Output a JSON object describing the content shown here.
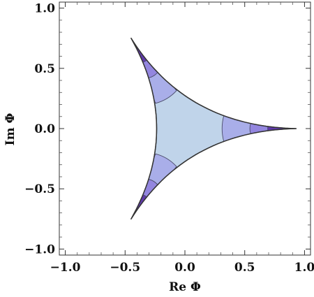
{
  "chart_data": {
    "type": "contour",
    "xlabel": "Re Φ",
    "ylabel": "Im Φ",
    "xlim": [
      -1.05,
      1.05
    ],
    "ylim": [
      -1.05,
      1.05
    ],
    "xticks": [
      {
        "value": -1.0,
        "label": "−1.0"
      },
      {
        "value": -0.5,
        "label": "−0.5"
      },
      {
        "value": 0.0,
        "label": "0.0"
      },
      {
        "value": 0.5,
        "label": "0.5"
      },
      {
        "value": 1.0,
        "label": "1.0"
      }
    ],
    "yticks": [
      {
        "value": 1.0,
        "label": "1.0"
      },
      {
        "value": 0.5,
        "label": "0.5"
      },
      {
        "value": 0.0,
        "label": "0.0"
      },
      {
        "value": -0.5,
        "label": "−0.5"
      },
      {
        "value": -1.0,
        "label": "−1.0"
      }
    ],
    "grid": false,
    "region": {
      "shape": "three-cusped curved triangle (deltoid)",
      "tips": [
        [
          0.93,
          0.0
        ],
        [
          -0.45,
          0.75
        ],
        [
          -0.45,
          -0.75
        ]
      ],
      "outline_color": "#333333"
    },
    "contour_levels": [
      {
        "level": 1,
        "color": "#c0d4ea",
        "cusp_extent": [
          0.0,
          0.35
        ]
      },
      {
        "level": 2,
        "color": "#a8ace9",
        "cusp_extent": [
          0.35,
          0.6
        ]
      },
      {
        "level": 3,
        "color": "#9184de",
        "cusp_extent": [
          0.6,
          0.76
        ]
      },
      {
        "level": 4,
        "color": "#5d37a6",
        "cusp_extent": [
          0.76,
          0.89
        ]
      }
    ]
  }
}
